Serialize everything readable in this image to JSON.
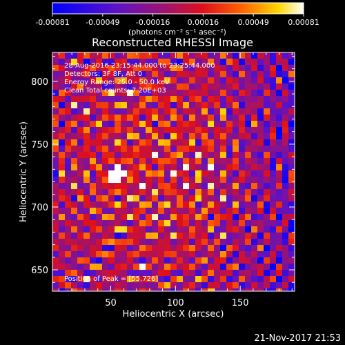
{
  "colorbar": {
    "tick_labels": [
      "-0.00081",
      "-0.00049",
      "-0.00016",
      "0.00016",
      "0.00049",
      "0.00081"
    ],
    "units": "(photons cm⁻² s⁻¹ asec⁻²)"
  },
  "chart_data": {
    "type": "heatmap",
    "title": "Reconstructed RHESSI Image",
    "xlabel": "Heliocentric X (arcsec)",
    "ylabel": "Heliocentric Y (arcsec)",
    "xlim": [
      5,
      192
    ],
    "ylim": [
      633,
      823
    ],
    "x_ticks": [
      50,
      100,
      150
    ],
    "y_ticks": [
      650,
      700,
      750,
      800
    ],
    "value_range": [
      -0.00081,
      0.00081
    ],
    "colormap": "rainbow-like: blue → purple → red → orange → yellow → white",
    "annotations": [
      "28-Aug-2016 23:15:44.000 to 23:25:44.000",
      "Detectors: 3F 8F, Att 0",
      "Energy Range: 25.0 - 50.0 keV",
      "Clean     Total counts: 7.20E+03",
      "Position of Peak = [55,726]"
    ],
    "peak": {
      "x": 55,
      "y": 726
    },
    "grid": false
  },
  "footer": {
    "timestamp": "21-Nov-2017 21:53"
  }
}
